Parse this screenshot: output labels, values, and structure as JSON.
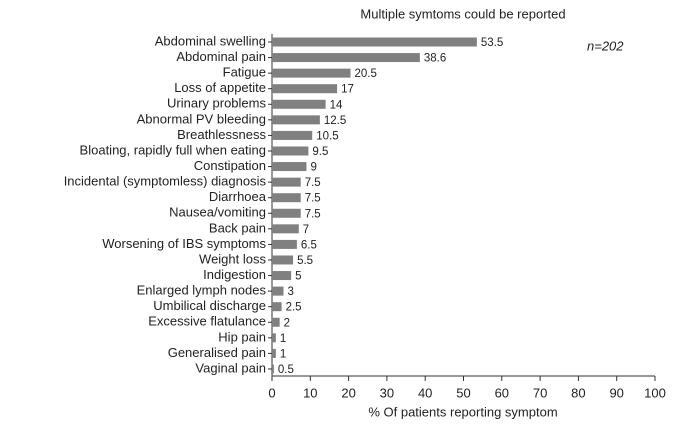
{
  "chart_data": {
    "type": "bar",
    "orientation": "horizontal",
    "title": "Multiple symtoms could be reported",
    "annotation": "n=202",
    "x_label": "% Of patients reporting symptom",
    "categories": [
      "Abdominal swelling",
      "Abdominal pain",
      "Fatigue",
      "Loss of appetite",
      "Urinary problems",
      "Abnormal PV bleeding",
      "Breathlessness",
      "Bloating, rapidly full when eating",
      "Constipation",
      "Incidental (symptomless) diagnosis",
      "Diarrhoea",
      "Nausea/vomiting",
      "Back pain",
      "Worsening of IBS symptoms",
      "Weight loss",
      "Indigestion",
      "Enlarged lymph nodes",
      "Umbilical discharge",
      "Excessive flatulance",
      "Hip pain",
      "Generalised pain",
      "Vaginal pain"
    ],
    "values": [
      53.5,
      38.6,
      20.5,
      17,
      14,
      12.5,
      10.5,
      9.5,
      9,
      7.5,
      7.5,
      7.5,
      7,
      6.5,
      5.5,
      5,
      3,
      2.5,
      2,
      1,
      1,
      0.5
    ],
    "color": "#808080",
    "xlim": [
      0,
      100
    ],
    "xticks": [
      0,
      10,
      20,
      30,
      40,
      50,
      60,
      70,
      80,
      90,
      100
    ]
  }
}
